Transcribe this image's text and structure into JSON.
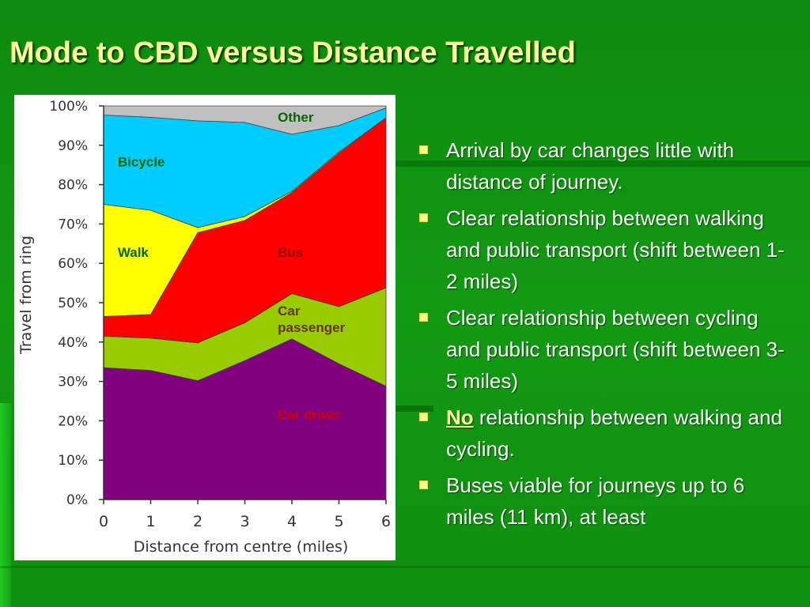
{
  "slide": {
    "title": "Mode to CBD versus Distance Travelled",
    "bullets": [
      {
        "emphasis": "",
        "text": "Arrival by car changes little with distance of journey."
      },
      {
        "emphasis": "",
        "text": "Clear relationship between walking and public transport (shift between 1-2 miles)"
      },
      {
        "emphasis": "",
        "text": "Clear relationship between cycling and public transport (shift between 3-5 miles)"
      },
      {
        "emphasis": "No",
        "text": " relationship between walking and cycling."
      },
      {
        "emphasis": "",
        "text": "Buses viable for journeys up to 6 miles (11 km), at least"
      }
    ],
    "colors": {
      "background": "#129a12",
      "title": "#ffff99",
      "bullet": "#ffff88",
      "text": "#ffffff"
    }
  },
  "chart_data": {
    "type": "area",
    "stacked": true,
    "x": [
      0,
      1,
      2,
      3,
      4,
      5,
      6
    ],
    "xlabel": "Distance from centre (miles)",
    "ylabel": "Travel from ring",
    "xlim": [
      0,
      6
    ],
    "ylim": [
      0,
      100
    ],
    "x_ticks": [
      "0",
      "1",
      "2",
      "3",
      "4",
      "5",
      "6"
    ],
    "y_ticks": [
      "0%",
      "10%",
      "20%",
      "30%",
      "40%",
      "50%",
      "60%",
      "70%",
      "80%",
      "90%",
      "100%"
    ],
    "grid": false,
    "series": [
      {
        "name": "Car driver",
        "color": "#800080",
        "values": [
          33.5,
          32.8,
          30.2,
          35.3,
          40.8,
          34.5,
          28.8
        ]
      },
      {
        "name": "Car passenger",
        "color": "#99cc00",
        "values": [
          8.0,
          8.2,
          9.6,
          9.6,
          11.5,
          14.5,
          25.0
        ]
      },
      {
        "name": "Bus",
        "color": "#ff0000",
        "values": [
          5.0,
          6.0,
          28.0,
          26.0,
          25.7,
          39.0,
          43.2
        ]
      },
      {
        "name": "Walk",
        "color": "#ffff00",
        "values": [
          28.5,
          26.5,
          1.3,
          1.0,
          0.3,
          0.3,
          0.0
        ]
      },
      {
        "name": "Bicycle",
        "color": "#00ccff",
        "values": [
          22.7,
          23.6,
          27.1,
          23.9,
          14.5,
          6.7,
          2.5
        ]
      },
      {
        "name": "Other",
        "color": "#c0c0c0",
        "values": [
          2.3,
          2.9,
          3.8,
          4.2,
          7.2,
          5.0,
          0.5
        ]
      }
    ],
    "inline_labels": [
      {
        "text": "Other",
        "color": "#006600"
      },
      {
        "text": "Bicycle",
        "color": "#006600"
      },
      {
        "text": "Walk",
        "color": "#006600"
      },
      {
        "text": "Bus",
        "color": "#990000"
      },
      {
        "text": "Car passenger",
        "color": "#663300"
      },
      {
        "text": "Car driver",
        "color": "#cc0000"
      }
    ]
  }
}
